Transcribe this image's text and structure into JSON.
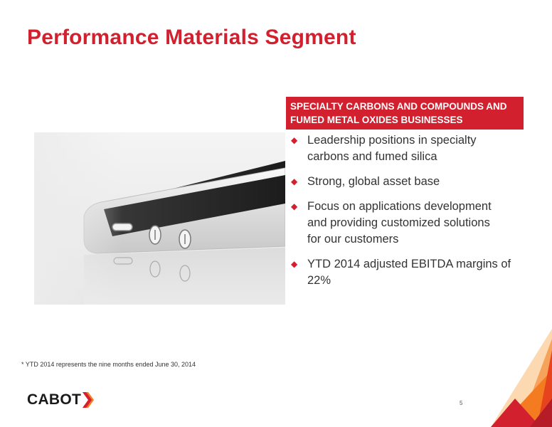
{
  "slide": {
    "title": "Performance Materials Segment",
    "header_lines": [
      "SPECIALTY CARBONS AND COMPOUNDS AND",
      "FUMED METAL OXIDES BUSINESSES"
    ],
    "bullets": [
      {
        "lines": [
          "Leadership positions in specialty",
          "carbons and fumed silica"
        ]
      },
      {
        "lines": [
          "Strong, global asset base"
        ]
      },
      {
        "lines": [
          "Focus on applications development",
          "and providing customized solutions",
          "for our customers"
        ]
      },
      {
        "lines": [
          "YTD 2014 adjusted EBITDA margins of",
          "22%"
        ]
      }
    ],
    "bullet_glyph": "◆",
    "footnote": "* YTD 2014 represents the nine months ended June 30, 2014",
    "logo_text": "CABOT",
    "page_number": "5"
  },
  "colors": {
    "brand_red": "#d2202e",
    "accent_orange": "#f47b20",
    "text_dark": "#333333"
  },
  "icons": {
    "bullet": "diamond-icon",
    "logo_mark": "chevron-mark-icon",
    "photo": "smartphone-side-photo"
  }
}
